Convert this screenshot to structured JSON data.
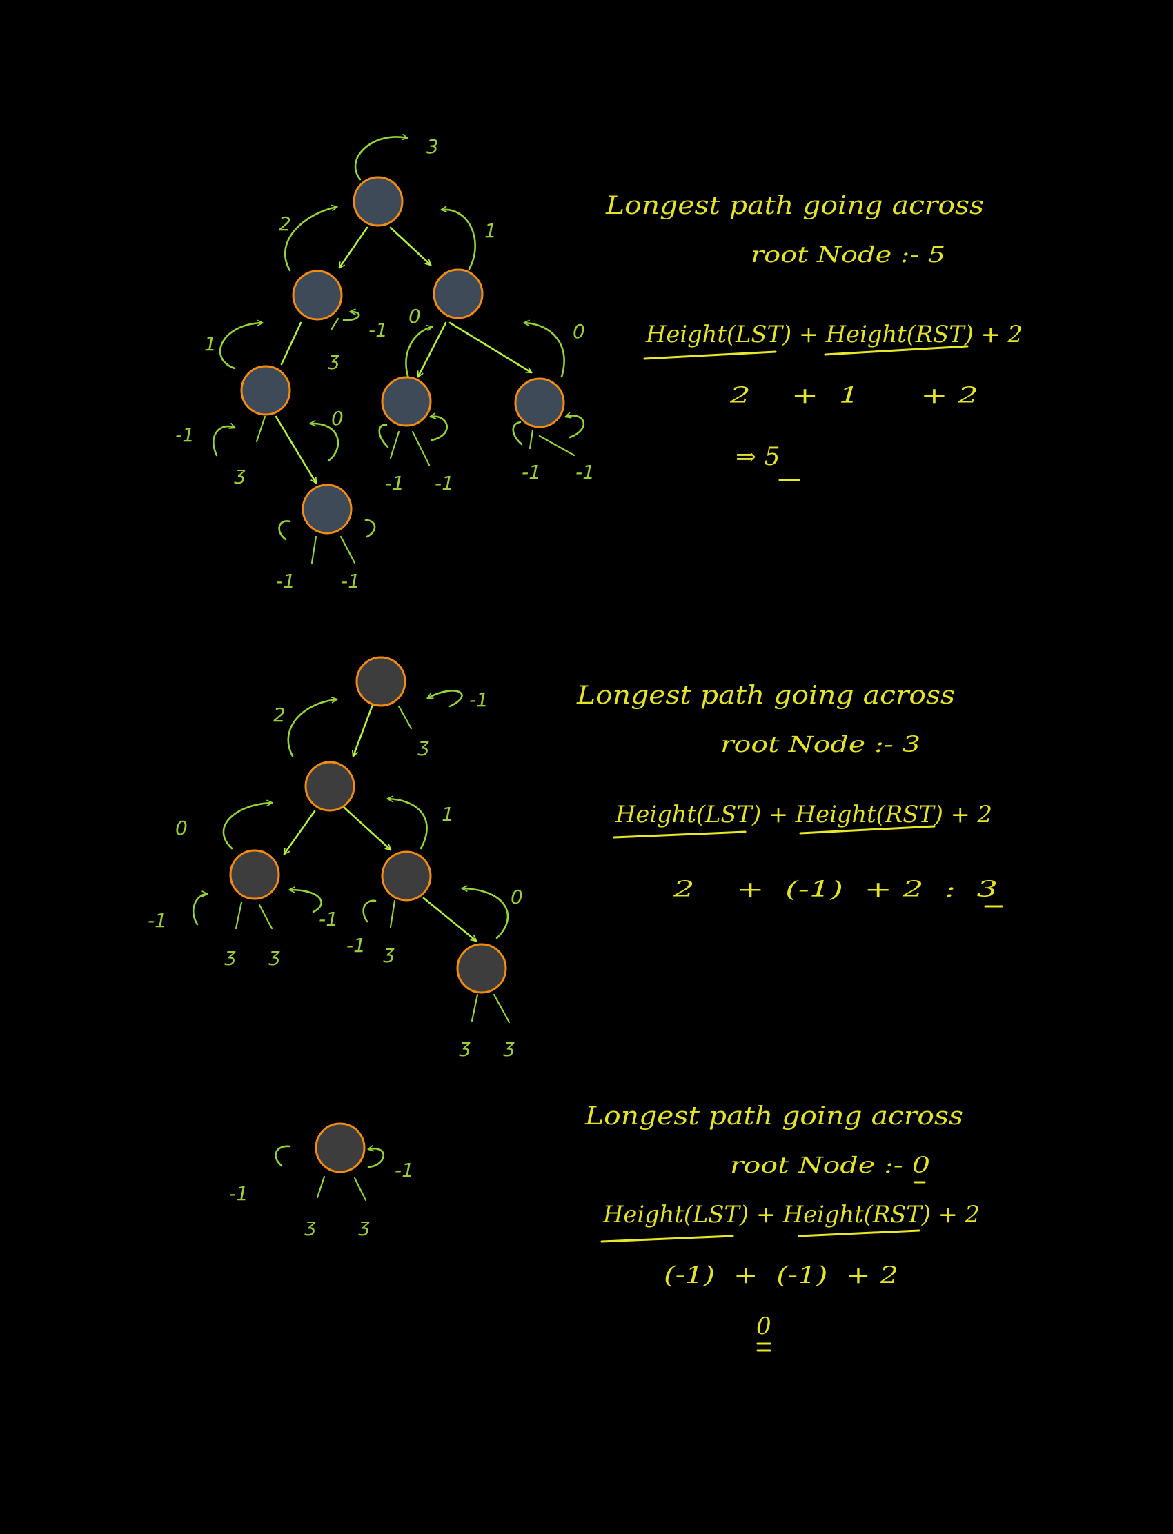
{
  "colors": {
    "background": "#000000",
    "node_fill_blue": "#3e4a58",
    "node_fill_gray": "#3d3d3d",
    "node_stroke": "#f28c12",
    "tree_edge": "#b6ef3e",
    "annotation_green": "#96d23a",
    "annotation_yellow": "#e3e32a"
  },
  "section1": {
    "title_line1": "Longest path going across",
    "title_line2": "root Node :- 5",
    "formula": "Height(LST) + Height(RST) + 2",
    "values": "2    +  1      + 2",
    "result": "⇒ 5",
    "height_labels": {
      "root": "3",
      "root_left": "2",
      "root_right": "1",
      "n1_left": "1",
      "n1_right": "-1",
      "n2_left": "0",
      "n2_right": "0",
      "n3_left": "-1",
      "n3_right": "0",
      "n3_null": "ʒ",
      "n1_null": "ʒ",
      "n4_left": "-1",
      "n4_right": "-1",
      "n5_left": "-1",
      "n5_right": "-1",
      "n6_left": "-1",
      "n6_right": "-1"
    }
  },
  "section2": {
    "title_line1": "Longest path going across",
    "title_line2": "root Node :- 3",
    "formula": "Height(LST) + Height(RST) + 2",
    "values": "2    +  (-1)  + 2  :  3",
    "height_labels": {
      "root_left": "2",
      "root_right": "-1",
      "root_null": "ʒ",
      "n1_left": "0",
      "n1_right": "1",
      "n2_left": "-1",
      "n2_right": "-1",
      "n2_null_a": "ʒ",
      "n2_null_b": "ʒ",
      "n3_left": "-1",
      "n3_right": "0",
      "n3_null": "ʒ",
      "n4_null_a": "ʒ",
      "n4_null_b": "ʒ"
    }
  },
  "section3": {
    "title_line1": "Longest path going across",
    "title_line2": "root Node :- 0",
    "formula": "Height(LST) + Height(RST) + 2",
    "values": "(-1)  +  (-1)  + 2",
    "result": "0",
    "height_labels": {
      "left": "-1",
      "right": "-1",
      "null_a": "ʒ",
      "null_b": "ʒ"
    }
  }
}
